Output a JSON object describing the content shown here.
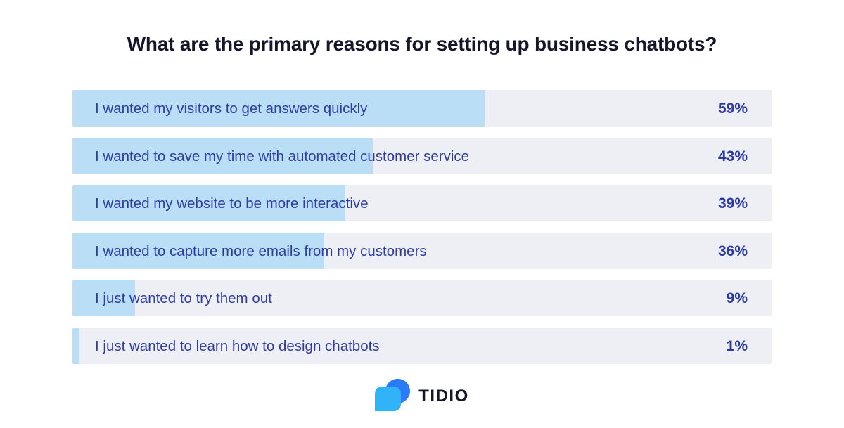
{
  "title": "What are the primary reasons for setting up business chatbots?",
  "colors": {
    "background": "#ffffff",
    "title_text": "#16162a",
    "bar_fill": "#b9def5",
    "bar_track": "#edeff5",
    "label_text": "#2f3da0",
    "value_text": "#2c399c",
    "logo_bubble_front": "#31b3f7",
    "logo_bubble_back": "#2a7bf7",
    "logo_text": "#16162a"
  },
  "chart_data": {
    "type": "bar",
    "orientation": "horizontal",
    "title": "What are the primary reasons for setting up business chatbots?",
    "categories": [
      "I wanted my visitors to get answers quickly",
      "I wanted to save my time with automated customer service",
      "I wanted my website to be more interactive",
      "I wanted to capture more emails from my customers",
      "I just wanted to try them out",
      "I just wanted to learn how to design chatbots"
    ],
    "values": [
      59,
      43,
      39,
      36,
      9,
      1
    ],
    "value_labels": [
      "59%",
      "43%",
      "39%",
      "36%",
      "9%",
      "1%"
    ],
    "xlim": [
      0,
      100
    ],
    "grid": false,
    "legend": false,
    "value_label_position": "right-aligned-inside-track",
    "bar_color": "#b9def5",
    "track_color": "#edeff5"
  },
  "footer": {
    "brand": "TIDIO",
    "logo_icon": "tidio-chat-bubbles-icon"
  }
}
